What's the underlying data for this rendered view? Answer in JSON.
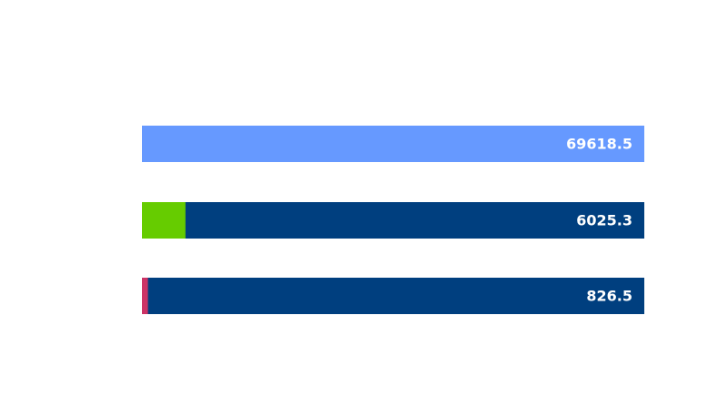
{
  "chart_data": {
    "type": "bar",
    "orientation": "horizontal",
    "values": [
      69618.5,
      6025.3,
      826.5
    ],
    "colors": [
      "#6699ff",
      "#66cc00",
      "#cc3366"
    ],
    "track_color": "#003f7f",
    "xlim": [
      0,
      69618.5
    ]
  }
}
